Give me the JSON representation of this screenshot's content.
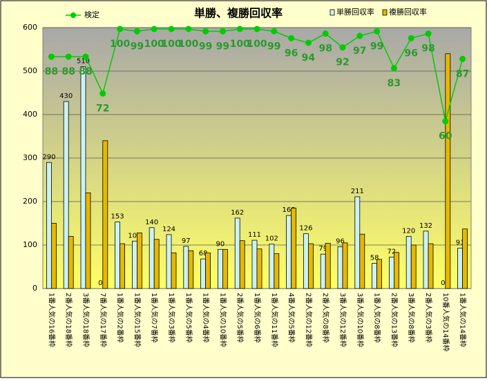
{
  "chart_data": {
    "type": "bar_line",
    "title": "単勝、複勝回収率",
    "categories": [
      "1番人気の16番枠",
      "2番人気の18番枠",
      "3番人気の18番枠",
      "7番人気の17番枠",
      "1番人気の2番枠",
      "1番人気の15番枠",
      "1番人気の7番枠",
      "1番人気の3番枠",
      "1番人気の5番枠",
      "1番人気の4番枠",
      "1番人気の10番枠",
      "2番人気の5番枠",
      "1番人気の6番枠",
      "1番人気の11番枠",
      "4番人気の5番枠",
      "2番人気の12番枠",
      "2番人気の8番枠",
      "3番人気の12番枠",
      "3番人気の10番枠",
      "1番人気の8番枠",
      "2番人気の13番枠",
      "3番人気の8番枠",
      "2番人気の3番枠",
      "10番人気の14番枠",
      "1番人気の14番枠"
    ],
    "series": [
      {
        "name": "単勝回収率",
        "type": "bar",
        "color": "#ccf2f2",
        "show_labels": true,
        "values": [
          290,
          430,
          510,
          0,
          153,
          109,
          140,
          124,
          97,
          68,
          90,
          162,
          111,
          102,
          168,
          126,
          79,
          96,
          211,
          58,
          72,
          120,
          132,
          0,
          93
        ]
      },
      {
        "name": "複勝回収率",
        "type": "bar",
        "color": "#e6b800",
        "show_labels": false,
        "values": [
          150,
          120,
          220,
          340,
          103,
          128,
          113,
          82,
          87,
          82,
          90,
          110,
          91,
          80,
          185,
          103,
          104,
          105,
          125,
          67,
          83,
          100,
          103,
          540,
          137
        ]
      },
      {
        "name": "検定",
        "type": "line",
        "axis": "y2",
        "color": "#00cc00",
        "show_labels": true,
        "values": [
          88,
          88,
          88,
          72,
          100,
          99,
          100,
          100,
          100,
          99,
          99,
          100,
          100,
          99,
          96,
          94,
          98,
          92,
          97,
          99,
          83,
          96,
          98,
          60,
          87
        ]
      }
    ],
    "ylim": [
      0,
      600
    ],
    "yticks": [
      0,
      100,
      200,
      300,
      400,
      500,
      600
    ],
    "y2lim": [
      -12.6,
      100.6
    ],
    "grid": true
  }
}
